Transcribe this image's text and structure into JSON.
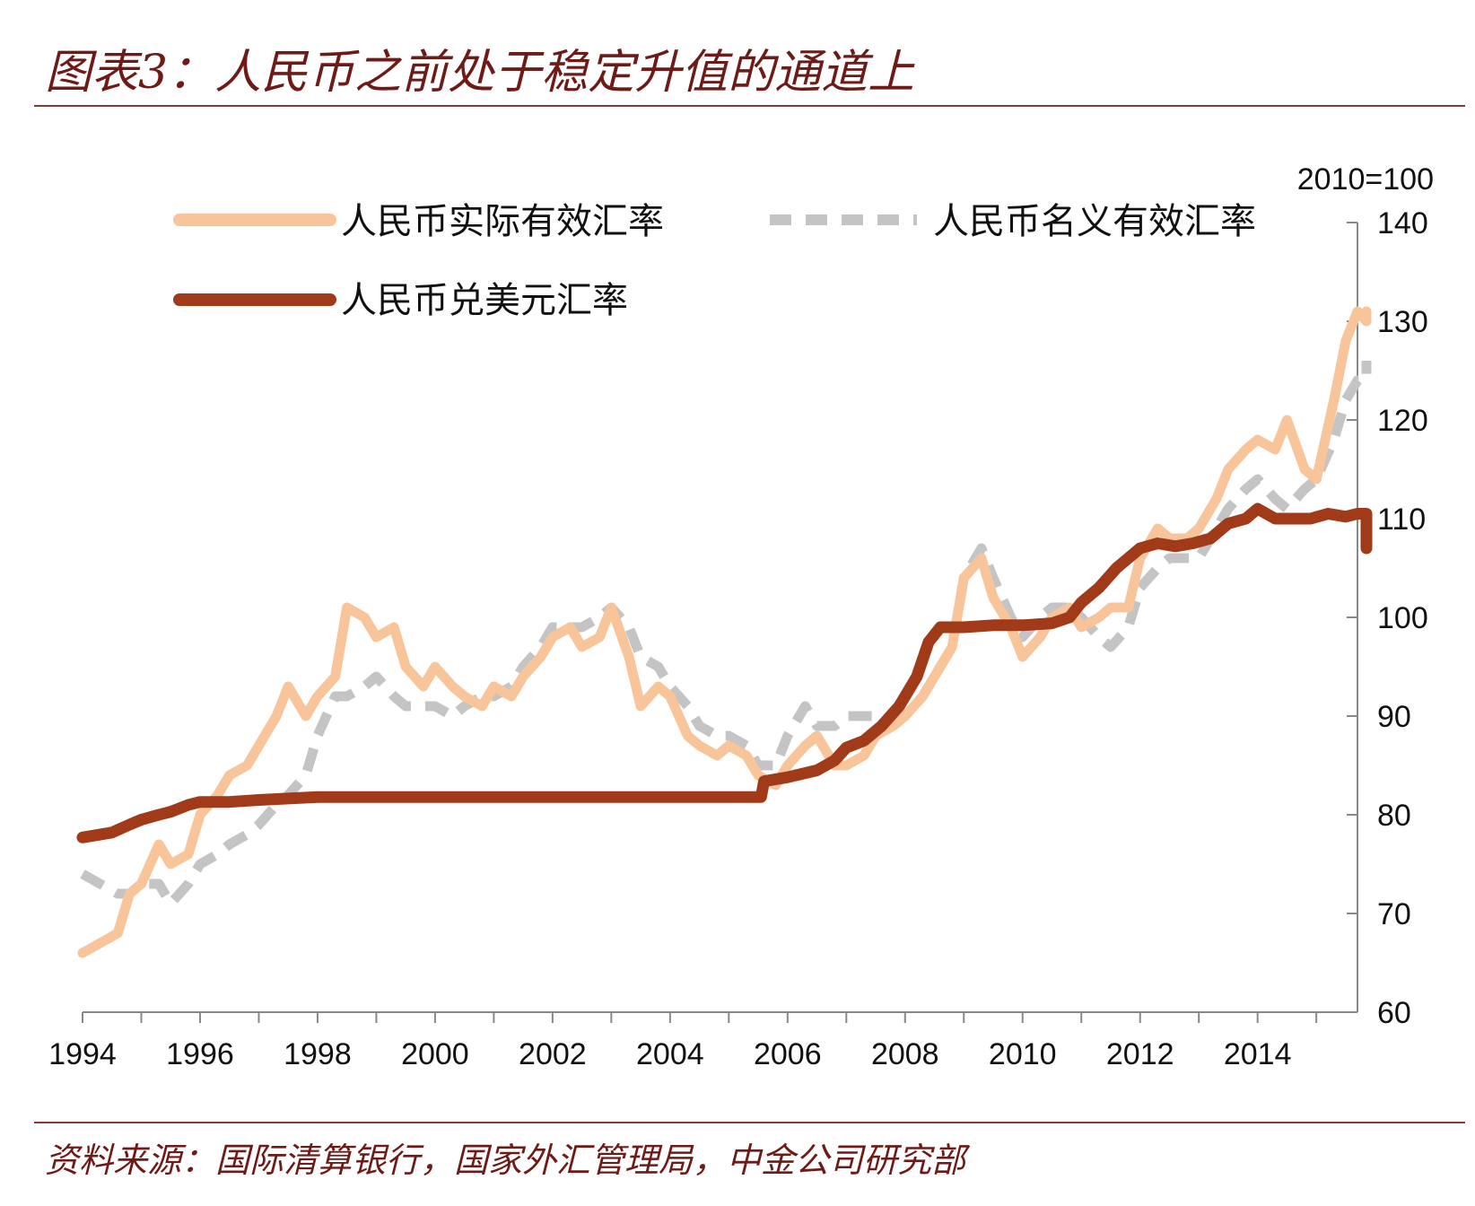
{
  "header": {
    "title": "图表3：人民币之前处于稳定升值的通道上"
  },
  "footer": {
    "source": "资料来源：国际清算银行，国家外汇管理局，中金公司研究部"
  },
  "chart_data": {
    "type": "line",
    "title": "图表3：人民币之前处于稳定升值的通道上",
    "unit_note": "2010=100",
    "xlim": [
      1994,
      2015.7
    ],
    "ylim": [
      60,
      140
    ],
    "x_ticks": [
      "1994",
      "1996",
      "1998",
      "2000",
      "2002",
      "2004",
      "2006",
      "2008",
      "2010",
      "2012",
      "2014"
    ],
    "y_ticks": [
      "60",
      "70",
      "80",
      "90",
      "100",
      "110",
      "120",
      "130",
      "140"
    ],
    "grid": false,
    "y_axis_side": "right",
    "legend_placement": "top-left",
    "colors": {
      "reer": "#f8c49a",
      "neer": "#c4c4c4",
      "usd": "#a13a18",
      "text": "#6e1a16"
    },
    "series": [
      {
        "name": "人民币实际有效汇率",
        "key": "reer",
        "style": "solid",
        "points": [
          [
            1994.0,
            66
          ],
          [
            1994.3,
            67
          ],
          [
            1994.6,
            68
          ],
          [
            1994.8,
            72
          ],
          [
            1995.0,
            73
          ],
          [
            1995.3,
            77
          ],
          [
            1995.5,
            75
          ],
          [
            1995.8,
            76
          ],
          [
            1996.0,
            80
          ],
          [
            1996.3,
            82
          ],
          [
            1996.5,
            84
          ],
          [
            1996.8,
            85
          ],
          [
            1997.0,
            87
          ],
          [
            1997.3,
            90
          ],
          [
            1997.5,
            93
          ],
          [
            1997.8,
            90
          ],
          [
            1998.0,
            92
          ],
          [
            1998.3,
            94
          ],
          [
            1998.5,
            101
          ],
          [
            1998.8,
            100
          ],
          [
            1999.0,
            98
          ],
          [
            1999.3,
            99
          ],
          [
            1999.5,
            95
          ],
          [
            1999.8,
            93
          ],
          [
            2000.0,
            95
          ],
          [
            2000.3,
            93
          ],
          [
            2000.5,
            92
          ],
          [
            2000.8,
            91
          ],
          [
            2001.0,
            93
          ],
          [
            2001.3,
            92
          ],
          [
            2001.5,
            94
          ],
          [
            2001.8,
            96
          ],
          [
            2002.0,
            98
          ],
          [
            2002.3,
            99
          ],
          [
            2002.5,
            97
          ],
          [
            2002.8,
            98
          ],
          [
            2003.0,
            101
          ],
          [
            2003.3,
            96
          ],
          [
            2003.5,
            91
          ],
          [
            2003.8,
            93
          ],
          [
            2004.0,
            92
          ],
          [
            2004.3,
            88
          ],
          [
            2004.5,
            87
          ],
          [
            2004.8,
            86
          ],
          [
            2005.0,
            87
          ],
          [
            2005.3,
            86
          ],
          [
            2005.5,
            84
          ],
          [
            2005.8,
            83
          ],
          [
            2006.0,
            85
          ],
          [
            2006.3,
            87
          ],
          [
            2006.5,
            88
          ],
          [
            2006.8,
            85
          ],
          [
            2007.0,
            85
          ],
          [
            2007.3,
            86
          ],
          [
            2007.5,
            88
          ],
          [
            2007.8,
            89
          ],
          [
            2008.0,
            90
          ],
          [
            2008.3,
            92
          ],
          [
            2008.5,
            94
          ],
          [
            2008.8,
            97
          ],
          [
            2009.0,
            104
          ],
          [
            2009.3,
            106
          ],
          [
            2009.5,
            102
          ],
          [
            2009.8,
            99
          ],
          [
            2010.0,
            96
          ],
          [
            2010.3,
            98
          ],
          [
            2010.5,
            100
          ],
          [
            2010.8,
            101
          ],
          [
            2011.0,
            99
          ],
          [
            2011.3,
            100
          ],
          [
            2011.5,
            101
          ],
          [
            2011.8,
            101
          ],
          [
            2012.0,
            106
          ],
          [
            2012.3,
            109
          ],
          [
            2012.5,
            108
          ],
          [
            2012.8,
            108
          ],
          [
            2013.0,
            109
          ],
          [
            2013.3,
            112
          ],
          [
            2013.5,
            115
          ],
          [
            2013.8,
            117
          ],
          [
            2014.0,
            118
          ],
          [
            2014.3,
            117
          ],
          [
            2014.5,
            120
          ],
          [
            2014.8,
            115
          ],
          [
            2015.0,
            114
          ],
          [
            2015.3,
            122
          ],
          [
            2015.5,
            128
          ],
          [
            2015.7,
            131
          ],
          [
            2015.9,
            130
          ],
          [
            2016.1,
            131
          ]
        ]
      },
      {
        "name": "人民币名义有效汇率",
        "key": "neer",
        "style": "dashed",
        "points": [
          [
            1994.0,
            74
          ],
          [
            1994.3,
            73
          ],
          [
            1994.6,
            72
          ],
          [
            1994.8,
            72
          ],
          [
            1995.0,
            73
          ],
          [
            1995.3,
            73
          ],
          [
            1995.5,
            71
          ],
          [
            1995.8,
            73
          ],
          [
            1996.0,
            75
          ],
          [
            1996.3,
            76
          ],
          [
            1996.5,
            77
          ],
          [
            1996.8,
            78
          ],
          [
            1997.0,
            79
          ],
          [
            1997.3,
            81
          ],
          [
            1997.5,
            82
          ],
          [
            1997.8,
            84
          ],
          [
            1998.0,
            88
          ],
          [
            1998.3,
            92
          ],
          [
            1998.5,
            92
          ],
          [
            1998.8,
            93
          ],
          [
            1999.0,
            94
          ],
          [
            1999.3,
            92
          ],
          [
            1999.5,
            91
          ],
          [
            1999.8,
            91
          ],
          [
            2000.0,
            91
          ],
          [
            2000.3,
            90
          ],
          [
            2000.5,
            91
          ],
          [
            2000.8,
            92
          ],
          [
            2001.0,
            92
          ],
          [
            2001.3,
            93
          ],
          [
            2001.5,
            95
          ],
          [
            2001.8,
            97
          ],
          [
            2002.0,
            99
          ],
          [
            2002.3,
            99
          ],
          [
            2002.5,
            99
          ],
          [
            2002.8,
            100
          ],
          [
            2003.0,
            101
          ],
          [
            2003.3,
            99
          ],
          [
            2003.5,
            96
          ],
          [
            2003.8,
            95
          ],
          [
            2004.0,
            93
          ],
          [
            2004.3,
            91
          ],
          [
            2004.5,
            89
          ],
          [
            2004.8,
            88
          ],
          [
            2005.0,
            88
          ],
          [
            2005.3,
            87
          ],
          [
            2005.5,
            85
          ],
          [
            2005.8,
            85
          ],
          [
            2006.0,
            88
          ],
          [
            2006.3,
            91
          ],
          [
            2006.5,
            89
          ],
          [
            2006.8,
            89
          ],
          [
            2007.0,
            90
          ],
          [
            2007.3,
            90
          ],
          [
            2007.5,
            90
          ],
          [
            2007.8,
            90
          ],
          [
            2008.0,
            90
          ],
          [
            2008.3,
            92
          ],
          [
            2008.5,
            94
          ],
          [
            2008.8,
            97
          ],
          [
            2009.0,
            104
          ],
          [
            2009.3,
            107
          ],
          [
            2009.5,
            104
          ],
          [
            2009.8,
            100
          ],
          [
            2010.0,
            98
          ],
          [
            2010.3,
            100
          ],
          [
            2010.5,
            101
          ],
          [
            2010.8,
            101
          ],
          [
            2011.0,
            100
          ],
          [
            2011.3,
            98
          ],
          [
            2011.5,
            97
          ],
          [
            2011.8,
            99
          ],
          [
            2012.0,
            103
          ],
          [
            2012.3,
            105
          ],
          [
            2012.5,
            106
          ],
          [
            2012.8,
            106
          ],
          [
            2013.0,
            106
          ],
          [
            2013.3,
            109
          ],
          [
            2013.5,
            111
          ],
          [
            2013.8,
            113
          ],
          [
            2014.0,
            114
          ],
          [
            2014.3,
            112
          ],
          [
            2014.5,
            111
          ],
          [
            2014.8,
            113
          ],
          [
            2015.0,
            114
          ],
          [
            2015.3,
            118
          ],
          [
            2015.5,
            122
          ],
          [
            2015.7,
            124
          ],
          [
            2015.9,
            124
          ],
          [
            2016.1,
            126
          ]
        ]
      },
      {
        "name": "人民币兑美元汇率",
        "key": "usd",
        "style": "solid-bold",
        "points": [
          [
            1994.0,
            77.7
          ],
          [
            1994.5,
            78.2
          ],
          [
            1994.8,
            79
          ],
          [
            1995.0,
            79.5
          ],
          [
            1995.3,
            80
          ],
          [
            1995.5,
            80.3
          ],
          [
            1995.8,
            81
          ],
          [
            1996.0,
            81.3
          ],
          [
            1996.5,
            81.3
          ],
          [
            1997.0,
            81.5
          ],
          [
            1998.0,
            81.8
          ],
          [
            2000.0,
            81.8
          ],
          [
            2002.0,
            81.8
          ],
          [
            2004.0,
            81.8
          ],
          [
            2005.55,
            81.8
          ],
          [
            2005.6,
            83.4
          ],
          [
            2006.0,
            83.8
          ],
          [
            2006.5,
            84.5
          ],
          [
            2006.8,
            85.5
          ],
          [
            2007.0,
            86.8
          ],
          [
            2007.3,
            87.5
          ],
          [
            2007.6,
            89
          ],
          [
            2007.9,
            91
          ],
          [
            2008.2,
            94
          ],
          [
            2008.4,
            97.5
          ],
          [
            2008.6,
            99
          ],
          [
            2009.0,
            99
          ],
          [
            2009.5,
            99.2
          ],
          [
            2010.0,
            99.2
          ],
          [
            2010.5,
            99.4
          ],
          [
            2010.8,
            100
          ],
          [
            2011.0,
            101.5
          ],
          [
            2011.3,
            103
          ],
          [
            2011.6,
            105
          ],
          [
            2011.9,
            106.5
          ],
          [
            2012.0,
            107
          ],
          [
            2012.3,
            107.5
          ],
          [
            2012.6,
            107.2
          ],
          [
            2012.9,
            107.5
          ],
          [
            2013.2,
            108
          ],
          [
            2013.5,
            109.5
          ],
          [
            2013.8,
            110
          ],
          [
            2014.0,
            111
          ],
          [
            2014.3,
            110
          ],
          [
            2014.6,
            110
          ],
          [
            2014.9,
            110
          ],
          [
            2015.2,
            110.5
          ],
          [
            2015.5,
            110.2
          ],
          [
            2015.7,
            110.5
          ],
          [
            2015.9,
            110.5
          ],
          [
            2016.0,
            108
          ],
          [
            2016.1,
            107
          ]
        ]
      }
    ]
  }
}
